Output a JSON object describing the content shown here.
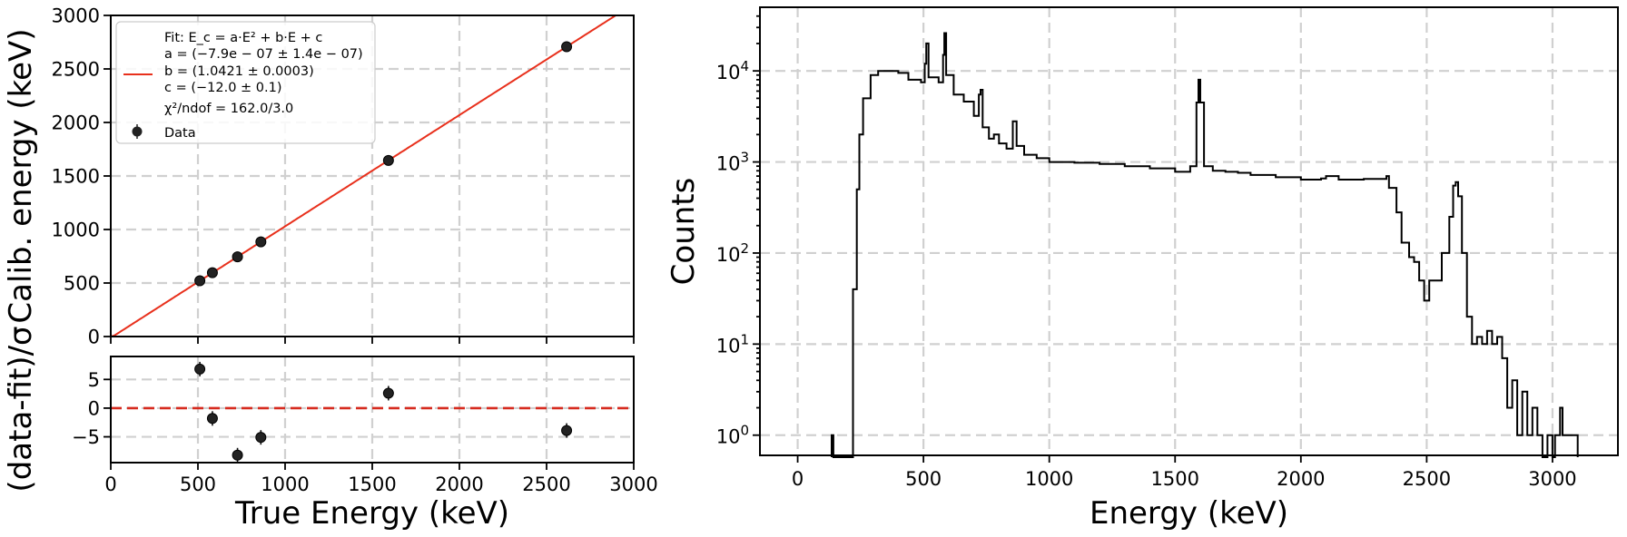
{
  "colors": {
    "fit_line": "#e8301c",
    "residual_zero_line": "#d62a1e",
    "markers": "#222222",
    "histogram": "#000000",
    "grid": "#d0d0d0"
  },
  "chart_data": [
    {
      "type": "line",
      "panel": "calibration",
      "xlabel": "",
      "ylabel": "Calib. energy (keV)",
      "xlim": [
        0,
        3000
      ],
      "ylim": [
        0,
        3000
      ],
      "xticks": [
        0,
        500,
        1000,
        1500,
        2000,
        2500,
        3000
      ],
      "yticks": [
        0,
        500,
        1000,
        1500,
        2000,
        2500,
        3000
      ],
      "grid": true,
      "legend_position": "top-left",
      "fit": {
        "a": -7.9e-07,
        "b": 1.0421,
        "c": -12.0
      },
      "series": [
        {
          "name": "Data",
          "x": [
            511,
            583,
            727,
            861,
            1593,
            2615
          ],
          "y": [
            521,
            596,
            745,
            885,
            1645,
            2708
          ]
        }
      ],
      "legend": {
        "fit_lines": [
          "Fit: E_c = a·E² + b·E + c",
          "a = (−7.9e − 07 ± 1.4e − 07)",
          "b = (1.0421 ± 0.0003)",
          "c = (−12.0 ± 0.1)",
          "χ²/ndof = 162.0/3.0"
        ],
        "data_label": "Data"
      }
    },
    {
      "type": "scatter",
      "panel": "residuals",
      "xlabel": "True Energy (keV)",
      "ylabel": "(data-fit)/σ",
      "xlim": [
        0,
        3000
      ],
      "ylim": [
        -9.5,
        9
      ],
      "xticks": [
        0,
        500,
        1000,
        1500,
        2000,
        2500,
        3000
      ],
      "yticks": [
        -5,
        0,
        5
      ],
      "grid": true,
      "series": [
        {
          "name": "",
          "x": [
            511,
            583,
            727,
            861,
            1593,
            2615
          ],
          "y": [
            6.8,
            -1.8,
            -8.2,
            -5.1,
            2.6,
            -3.9
          ]
        }
      ]
    },
    {
      "type": "line",
      "panel": "spectrum",
      "xlabel": "Energy (keV)",
      "ylabel": "Counts",
      "log_y": true,
      "xlim": [
        -150,
        3260
      ],
      "ylim": [
        0.6,
        50000
      ],
      "xticks": [
        0,
        500,
        1000,
        1500,
        2000,
        2500,
        3000
      ],
      "yticks": [
        1,
        10,
        100,
        1000,
        10000
      ],
      "grid": true,
      "series": [
        {
          "name": "",
          "step": true,
          "points": [
            [
              135,
              1
            ],
            [
              142,
              0
            ],
            [
              210,
              0
            ],
            [
              220,
              40
            ],
            [
              235,
              500
            ],
            [
              245,
              2000
            ],
            [
              260,
              5000
            ],
            [
              290,
              9000
            ],
            [
              320,
              10000
            ],
            [
              360,
              10000
            ],
            [
              400,
              9500
            ],
            [
              440,
              8000
            ],
            [
              490,
              7500
            ],
            [
              505,
              12000
            ],
            [
              511,
              20000
            ],
            [
              520,
              8500
            ],
            [
              560,
              7500
            ],
            [
              578,
              15000
            ],
            [
              583,
              26000
            ],
            [
              590,
              9000
            ],
            [
              620,
              5500
            ],
            [
              660,
              4600
            ],
            [
              700,
              3200
            ],
            [
              720,
              5500
            ],
            [
              727,
              6200
            ],
            [
              735,
              2400
            ],
            [
              760,
              1800
            ],
            [
              780,
              2000
            ],
            [
              800,
              1600
            ],
            [
              830,
              1400
            ],
            [
              855,
              2800
            ],
            [
              861,
              2800
            ],
            [
              870,
              1500
            ],
            [
              900,
              1200
            ],
            [
              950,
              1100
            ],
            [
              1000,
              1000
            ],
            [
              1100,
              980
            ],
            [
              1200,
              950
            ],
            [
              1300,
              900
            ],
            [
              1400,
              850
            ],
            [
              1500,
              780
            ],
            [
              1560,
              900
            ],
            [
              1585,
              4500
            ],
            [
              1593,
              8000
            ],
            [
              1600,
              4500
            ],
            [
              1615,
              900
            ],
            [
              1650,
              800
            ],
            [
              1700,
              780
            ],
            [
              1750,
              760
            ],
            [
              1800,
              720
            ],
            [
              1900,
              680
            ],
            [
              2000,
              640
            ],
            [
              2080,
              660
            ],
            [
              2100,
              700
            ],
            [
              2150,
              640
            ],
            [
              2250,
              650
            ],
            [
              2340,
              700
            ],
            [
              2350,
              520
            ],
            [
              2380,
              280
            ],
            [
              2400,
              130
            ],
            [
              2430,
              90
            ],
            [
              2450,
              80
            ],
            [
              2470,
              50
            ],
            [
              2490,
              30
            ],
            [
              2510,
              50
            ],
            [
              2560,
              100
            ],
            [
              2590,
              250
            ],
            [
              2605,
              550
            ],
            [
              2615,
              600
            ],
            [
              2625,
              420
            ],
            [
              2640,
              100
            ],
            [
              2660,
              20
            ],
            [
              2680,
              10
            ],
            [
              2700,
              12
            ],
            [
              2720,
              10
            ],
            [
              2740,
              14
            ],
            [
              2760,
              10
            ],
            [
              2780,
              12
            ],
            [
              2800,
              7
            ],
            [
              2820,
              2
            ],
            [
              2840,
              4
            ],
            [
              2860,
              1
            ],
            [
              2880,
              3
            ],
            [
              2900,
              1
            ],
            [
              2920,
              2
            ],
            [
              2940,
              1
            ],
            [
              2960,
              0
            ],
            [
              2980,
              1
            ],
            [
              3000,
              0
            ],
            [
              3010,
              1
            ],
            [
              3030,
              2
            ],
            [
              3040,
              1
            ],
            [
              3060,
              1
            ],
            [
              3080,
              1
            ],
            [
              3100,
              0
            ]
          ]
        }
      ]
    }
  ]
}
